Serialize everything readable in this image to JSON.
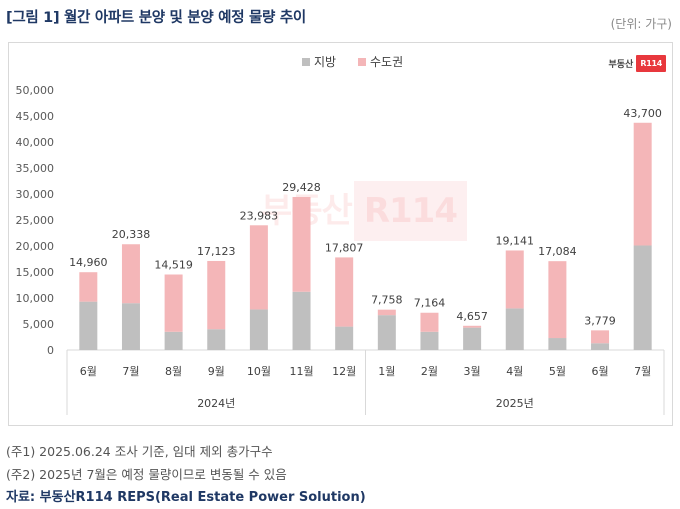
{
  "title": "[그림 1] 월간 아파트 분양 및 분양 예정 물량 추이",
  "unit": "(단위: 가구)",
  "logo": {
    "text": "부동산",
    "badge": "R114"
  },
  "watermark": {
    "text": "부동산",
    "badge": "R114"
  },
  "colors": {
    "regional": "#bfbfbf",
    "capital": "#f4b6b8"
  },
  "chart_data": {
    "type": "bar",
    "stacked": true,
    "legend": [
      "지방",
      "수도권"
    ],
    "legend_position": "top",
    "ylim": [
      0,
      50000
    ],
    "yticks": [
      "0",
      "5,000",
      "10,000",
      "15,000",
      "20,000",
      "25,000",
      "30,000",
      "35,000",
      "40,000",
      "45,000",
      "50,000"
    ],
    "categories": [
      "6월",
      "7월",
      "8월",
      "9월",
      "10월",
      "11월",
      "12월",
      "1월",
      "2월",
      "3월",
      "4월",
      "5월",
      "6월",
      "7월"
    ],
    "groups": [
      {
        "label": "2024년",
        "count": 7
      },
      {
        "label": "2025년",
        "count": 7
      }
    ],
    "series": [
      {
        "name": "지방",
        "values": [
          9300,
          9000,
          3500,
          4000,
          7800,
          11200,
          4500,
          6700,
          3500,
          4300,
          8000,
          2300,
          1300,
          20100
        ]
      },
      {
        "name": "수도권",
        "values": [
          5660,
          11338,
          11019,
          13123,
          16183,
          18228,
          13307,
          1058,
          3664,
          357,
          11141,
          14784,
          2479,
          23600
        ]
      }
    ],
    "totals": [
      14960,
      20338,
      14519,
      17123,
      23983,
      29428,
      17807,
      7758,
      7164,
      4657,
      19141,
      17084,
      3779,
      43700
    ],
    "total_labels": [
      "14,960",
      "20,338",
      "14,519",
      "17,123",
      "23,983",
      "29,428",
      "17,807",
      "7,758",
      "7,164",
      "4,657",
      "19,141",
      "17,084",
      "3,779",
      "43,700"
    ]
  },
  "notes": [
    "(주1) 2025.06.24 조사 기준, 임대 제외 총가구수",
    "(주2) 2025년 7월은 예정 물량이므로 변동될 수 있음"
  ],
  "source": "자료: 부동산R114 REPS(Real Estate Power Solution)"
}
